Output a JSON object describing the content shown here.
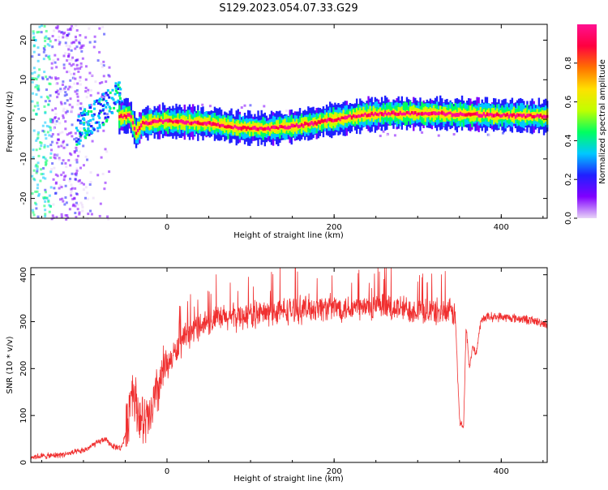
{
  "chart_data": [
    {
      "type": "heatmap",
      "title": "S129.2023.054.07.33.G29",
      "xlabel": "Height of straight line (km)",
      "ylabel": "Frequency (Hz)",
      "xlim": [
        -163,
        455
      ],
      "ylim": [
        -25,
        24
      ],
      "x_ticks": [
        0,
        200,
        400
      ],
      "y_ticks": [
        -20,
        -10,
        0,
        10,
        20
      ],
      "colorbar": {
        "label": "Normalized spectral amplitude",
        "range": [
          0.0,
          1.0
        ],
        "ticks": [
          "0.0",
          "0.2",
          "0.4",
          "0.6",
          "0.8"
        ],
        "tick_values": [
          0.0,
          0.2,
          0.4,
          0.6,
          0.8
        ],
        "colormap": [
          "#e8d4f7",
          "#8000ff",
          "#2020ff",
          "#00c8ff",
          "#00ff60",
          "#c0ff00",
          "#ffe000",
          "#ff7000",
          "#ff0040",
          "#ff1090"
        ]
      },
      "ridge": {
        "x": [
          -60,
          -45,
          -38,
          -30,
          -10,
          0,
          50,
          80,
          100,
          120,
          150,
          175,
          200,
          230,
          260,
          300,
          350,
          400,
          455
        ],
        "y": [
          0.5,
          1.0,
          -3.5,
          -1.0,
          -0.5,
          -0.5,
          -1.0,
          -2.0,
          -2.3,
          -2.3,
          -1.8,
          -1.0,
          0.0,
          1.0,
          1.5,
          1.5,
          1.3,
          1.0,
          0.7
        ]
      },
      "noise_region": {
        "x": [
          -163,
          -60
        ],
        "y": [
          -25,
          24
        ]
      }
    },
    {
      "type": "line",
      "xlabel": "Height of straight line (km)",
      "ylabel": "SNR (10 * v/v)",
      "xlim": [
        -163,
        455
      ],
      "ylim": [
        0,
        415
      ],
      "x_ticks": [
        0,
        200,
        400
      ],
      "y_ticks": [
        0,
        100,
        200,
        300,
        400
      ],
      "color": "#f03030",
      "series": [
        {
          "x": [
            -163,
            -140,
            -120,
            -100,
            -85,
            -75,
            -65,
            -55,
            -48,
            -42,
            -35,
            -28,
            -20,
            -12,
            -5,
            0,
            10,
            20,
            30,
            40,
            60,
            80,
            100,
            120,
            150,
            180,
            200,
            230,
            260,
            300,
            330,
            345,
            350,
            355,
            358,
            362,
            366,
            370,
            375,
            380,
            400,
            430,
            455
          ],
          "values": [
            12,
            14,
            18,
            25,
            40,
            50,
            35,
            30,
            70,
            170,
            110,
            80,
            95,
            150,
            190,
            205,
            235,
            260,
            280,
            295,
            305,
            310,
            315,
            318,
            325,
            330,
            330,
            330,
            330,
            325,
            320,
            318,
            90,
            75,
            290,
            200,
            250,
            230,
            295,
            310,
            310,
            305,
            295
          ]
        }
      ]
    }
  ]
}
